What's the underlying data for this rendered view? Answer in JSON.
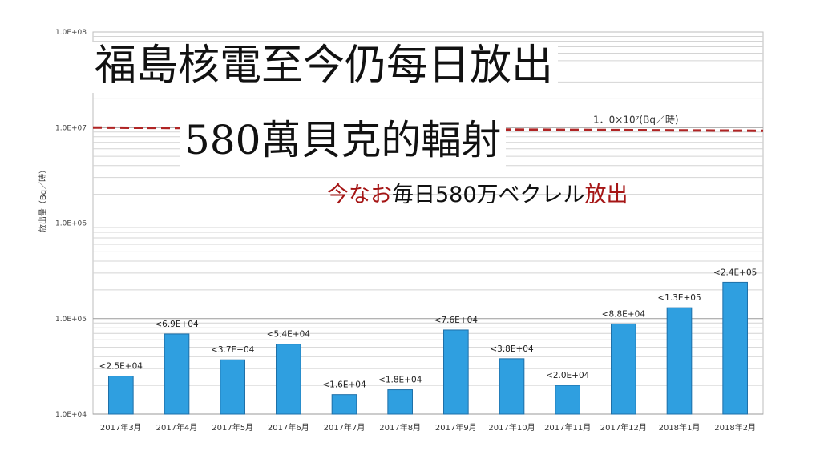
{
  "headline": {
    "line1": "福島核電至今仍每日放出",
    "line2": "580萬貝克的輻射"
  },
  "subtitle": {
    "part1": "今なお",
    "part2": "毎日580万ベクレル",
    "part3": "放出",
    "color_red": "#a51515",
    "color_black": "#111111"
  },
  "chart_data": {
    "type": "bar",
    "ylabel": "放出量（Bq／時）",
    "yscale": "log",
    "ylim": [
      10000,
      100000000
    ],
    "yticks": [
      10000,
      100000,
      1000000,
      10000000,
      100000000
    ],
    "ytick_labels": [
      "1.0E+04",
      "1.0E+05",
      "1.0E+06",
      "1.0E+07",
      "1.0E+08"
    ],
    "grid": true,
    "bar_color": "#2f9fe0",
    "bar_edge_color": "#1e6fa8",
    "categories": [
      "2017年3月",
      "2017年4月",
      "2017年5月",
      "2017年6月",
      "2017年7月",
      "2017年8月",
      "2017年9月",
      "2017年10月",
      "2017年11月",
      "2017年12月",
      "2018年1月",
      "2018年2月"
    ],
    "values": [
      25000,
      69000,
      37000,
      54000,
      16000,
      18000,
      76000,
      38000,
      20000,
      88000,
      130000,
      240000
    ],
    "data_labels": [
      "<2.5E+04",
      "<6.9E+04",
      "<3.7E+04",
      "<5.4E+04",
      "<1.6E+04",
      "<1.8E+04",
      "<7.6E+04",
      "<3.8E+04",
      "<2.0E+04",
      "<8.8E+04",
      "<1.3E+05",
      "<2.4E+05"
    ],
    "reference_line": {
      "value": 10000000,
      "label": "1．0×10⁷(Bq／時)",
      "color": "#b02424"
    }
  }
}
